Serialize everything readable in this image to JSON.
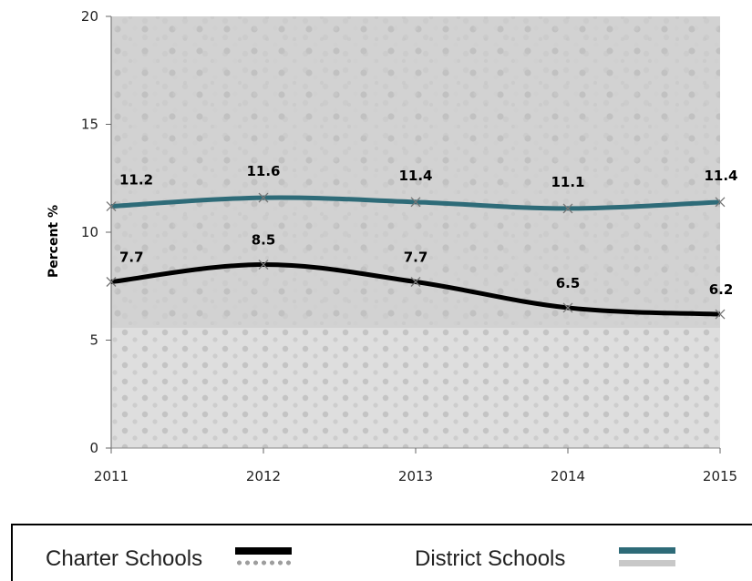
{
  "chart_data": {
    "type": "line",
    "title": "",
    "xlabel": "",
    "ylabel": "Percent %",
    "categories": [
      "2011",
      "2012",
      "2013",
      "2014",
      "2015"
    ],
    "ylim": [
      0,
      20
    ],
    "yticks": [
      "0",
      "5",
      "10",
      "15",
      "20"
    ],
    "series": [
      {
        "name": "Charter Schools",
        "values": [
          7.7,
          8.5,
          7.7,
          6.5,
          6.2
        ],
        "labels": [
          "7.7",
          "8.5",
          "7.7",
          "6.5",
          "6.2"
        ],
        "color": "#000000"
      },
      {
        "name": "District Schools",
        "values": [
          11.2,
          11.6,
          11.4,
          11.1,
          11.4
        ],
        "labels": [
          "11.2",
          "11.6",
          "11.4",
          "11.1",
          "11.4"
        ],
        "color": "#2e6b78"
      }
    ],
    "grid": false,
    "legend_position": "bottom"
  },
  "legend": {
    "charter_label": "Charter Schools",
    "district_label": "District Schools",
    "charter_swatch_colors": [
      "#000000",
      "#9e9e9e"
    ],
    "district_swatch_colors": [
      "#2e6b78",
      "#c8c8c8"
    ]
  }
}
